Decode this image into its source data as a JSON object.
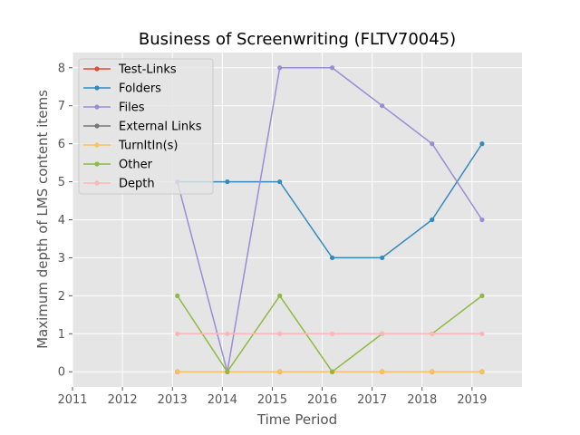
{
  "chart_data": {
    "type": "line",
    "title": "Business of Screenwriting (FLTV70045)",
    "xlabel": "Time Period",
    "ylabel": "Maximum depth of LMS content items",
    "x": [
      2013.1,
      2014.1,
      2015.15,
      2016.2,
      2017.2,
      2018.2,
      2019.2
    ],
    "xlim": [
      2011,
      2020
    ],
    "ylim": [
      -0.4,
      8.4
    ],
    "x_ticks": [
      "2011",
      "2012",
      "2013",
      "2014",
      "2015",
      "2016",
      "2017",
      "2018",
      "2019"
    ],
    "y_ticks": [
      "0",
      "1",
      "2",
      "3",
      "4",
      "5",
      "6",
      "7",
      "8"
    ],
    "grid": true,
    "legend_position": "top-left",
    "series": [
      {
        "name": "Test-Links",
        "color": "#e24a33",
        "values": [
          0,
          0,
          0,
          0,
          0,
          0,
          0
        ]
      },
      {
        "name": "Folders",
        "color": "#348abd",
        "values": [
          5,
          5,
          5,
          3,
          3,
          4,
          6
        ]
      },
      {
        "name": "Files",
        "color": "#988ed5",
        "values": [
          5,
          0,
          8,
          8,
          7,
          6,
          4
        ]
      },
      {
        "name": "External Links",
        "color": "#777777",
        "values": [
          0,
          0,
          0,
          0,
          0,
          0,
          0
        ]
      },
      {
        "name": "TurnItIn(s)",
        "color": "#fbc15e",
        "values": [
          0,
          0,
          0,
          0,
          0,
          0,
          0
        ]
      },
      {
        "name": "Other",
        "color": "#8eba42",
        "values": [
          2,
          0,
          2,
          0,
          1,
          1,
          2
        ]
      },
      {
        "name": "Depth",
        "color": "#ffb5b8",
        "values": [
          1,
          1,
          1,
          1,
          1,
          1,
          1
        ]
      }
    ]
  }
}
